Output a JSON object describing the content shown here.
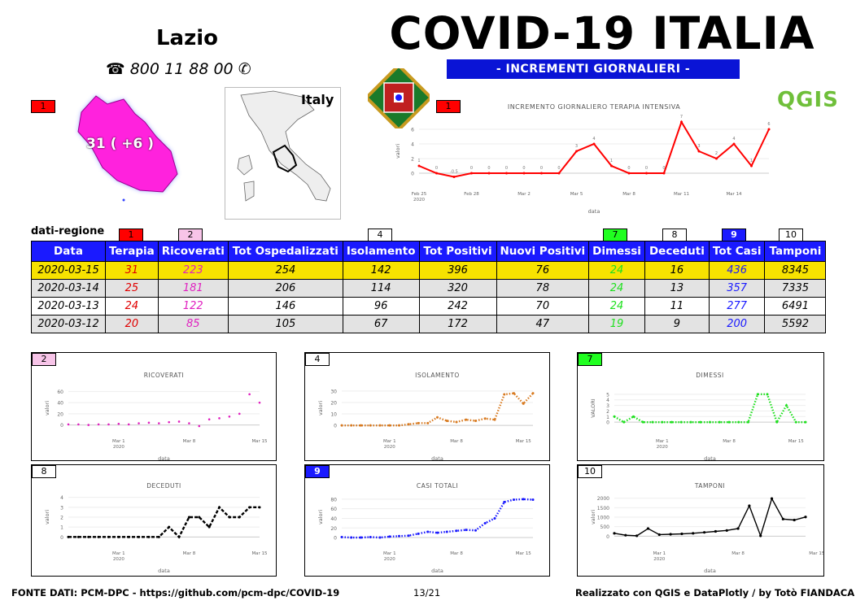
{
  "header": {
    "region": "Lazio",
    "phone_icon": "telephone-icon",
    "phone": "800 11 88 00",
    "title": "COVID-19 ITALIA",
    "subtitle": "- INCREMENTI GIORNALIERI -",
    "qgis_logo": "QGIS",
    "italy_label": "Italy",
    "map_label": "31 ( +6 )"
  },
  "badges": {
    "map": "1",
    "terapia_chart": "1",
    "tab_terapia": "1",
    "tab_ricoverati": "2",
    "tab_isolamento": "4",
    "tab_dimessi": "7",
    "tab_deceduti": "8",
    "tab_totcasi": "9",
    "tab_tamponi": "10"
  },
  "table": {
    "caption": "dati-regione",
    "headers": [
      "Data",
      "Terapia",
      "Ricoverati",
      "Tot Ospedalizzati",
      "Isolamento",
      "Tot Positivi",
      "Nuovi Positivi",
      "Dimessi",
      "Deceduti",
      "Tot Casi",
      "Tamponi"
    ],
    "rows": [
      [
        "2020-03-15",
        "31",
        "223",
        "254",
        "142",
        "396",
        "76",
        "24",
        "16",
        "436",
        "8345"
      ],
      [
        "2020-03-14",
        "25",
        "181",
        "206",
        "114",
        "320",
        "78",
        "24",
        "13",
        "357",
        "7335"
      ],
      [
        "2020-03-13",
        "24",
        "122",
        "146",
        "96",
        "242",
        "70",
        "24",
        "11",
        "277",
        "6491"
      ],
      [
        "2020-03-12",
        "20",
        "85",
        "105",
        "67",
        "172",
        "47",
        "19",
        "9",
        "200",
        "5592"
      ]
    ]
  },
  "footer": {
    "source": "FONTE DATI: PCM-DPC - https://github.com/pcm-dpc/COVID-19",
    "page": "13/21",
    "credits": "Realizzato con QGIS e DataPlotly / by Totò FIANDACA"
  },
  "chart_data": [
    {
      "id": "terapia",
      "type": "line",
      "badge": "1",
      "badge_color": "#ff0000",
      "title": "INCREMENTO GIORNALIERO TERAPIA INTENSIVA",
      "xlabel": "data",
      "ylabel": "valori",
      "color": "#ff0000",
      "style": "solid",
      "ylim": [
        -1,
        7
      ],
      "yticks": [
        0,
        2,
        4,
        6
      ],
      "x_tick_labels": [
        [
          "Feb 25",
          "2020"
        ],
        [
          "Feb 28",
          ""
        ],
        [
          "Mar 2",
          ""
        ],
        [
          "Mar 5",
          ""
        ],
        [
          "Mar 8",
          ""
        ],
        [
          "Mar 11",
          ""
        ],
        [
          "Mar 14",
          ""
        ]
      ],
      "x_tick_index": [
        0,
        3,
        6,
        9,
        12,
        15,
        18
      ],
      "values": [
        1,
        0,
        -0.5,
        0,
        0,
        0,
        0,
        0,
        0,
        3,
        4,
        1,
        0,
        0,
        0,
        7,
        3,
        2,
        4,
        1,
        6
      ],
      "point_labels": true
    },
    {
      "id": "ricoverati",
      "type": "scatter",
      "badge": "2",
      "badge_color": "#f7c4e8",
      "title": "RICOVERATI",
      "xlabel": "data",
      "ylabel": "valori",
      "color": "#e020c0",
      "style": "points",
      "ylim": [
        -5,
        65
      ],
      "yticks": [
        0,
        20,
        40,
        60
      ],
      "x_tick_labels": [
        [
          "Mar 1",
          "2020"
        ],
        [
          "Mar 8",
          ""
        ],
        [
          "Mar 15",
          ""
        ]
      ],
      "x_tick_index": [
        5,
        12,
        19
      ],
      "values": [
        1,
        1,
        0,
        1,
        1,
        2,
        1,
        3,
        4,
        3,
        5,
        6,
        3,
        -2,
        10,
        12,
        15,
        20,
        55,
        40
      ]
    },
    {
      "id": "isolamento",
      "type": "line",
      "badge": "4",
      "badge_color": "#ffffff",
      "title": "ISOLAMENTO",
      "xlabel": "data",
      "ylabel": "valori",
      "color": "#d87a20",
      "style": "dotted",
      "ylim": [
        -2,
        32
      ],
      "yticks": [
        0,
        10,
        20,
        30
      ],
      "x_tick_labels": [
        [
          "Mar 1",
          "2020"
        ],
        [
          "Mar 8",
          ""
        ],
        [
          "Mar 15",
          ""
        ]
      ],
      "x_tick_index": [
        5,
        12,
        19
      ],
      "values": [
        0,
        0,
        0,
        0,
        0,
        0,
        0,
        1,
        2,
        2,
        7,
        4,
        3,
        5,
        4,
        6,
        5,
        27,
        28,
        19,
        28
      ]
    },
    {
      "id": "dimessi",
      "type": "line",
      "badge": "7",
      "badge_color": "#20ff20",
      "title": "DIMESSI",
      "xlabel": "data",
      "ylabel": "VALORI",
      "color": "#20e020",
      "style": "dotted",
      "ylim": [
        -1,
        6
      ],
      "yticks": [
        0,
        1,
        2,
        3,
        4,
        5
      ],
      "x_tick_labels": [
        [
          "Mar 1",
          "2020"
        ],
        [
          "Mar 8",
          ""
        ],
        [
          "Mar 15",
          ""
        ]
      ],
      "x_tick_index": [
        5,
        12,
        19
      ],
      "values": [
        1,
        0,
        1,
        0,
        0,
        0,
        0,
        0,
        0,
        0,
        0,
        0,
        0,
        0,
        0,
        5,
        5,
        0,
        3,
        0,
        0
      ]
    },
    {
      "id": "deceduti",
      "type": "line",
      "badge": "8",
      "badge_color": "#ffffff",
      "title": "DECEDUTI",
      "xlabel": "data",
      "ylabel": "valori",
      "color": "#000000",
      "style": "dashed",
      "ylim": [
        -0.3,
        4.3
      ],
      "yticks": [
        0,
        1,
        2,
        3,
        4
      ],
      "x_tick_labels": [
        [
          "Mar 1",
          "2020"
        ],
        [
          "Mar 8",
          ""
        ],
        [
          "Mar 15",
          ""
        ]
      ],
      "x_tick_index": [
        5,
        12,
        19
      ],
      "values": [
        0,
        0,
        0,
        0,
        0,
        0,
        0,
        0,
        0,
        0,
        1,
        0,
        2,
        2,
        1,
        3,
        2,
        2,
        3,
        3
      ]
    },
    {
      "id": "casi_totali",
      "type": "line",
      "badge": "9",
      "badge_color": "#1a1aff",
      "title": "CASI TOTALI",
      "xlabel": "data",
      "ylabel": "valori",
      "color": "#1a1aff",
      "style": "dotted",
      "ylim": [
        -5,
        90
      ],
      "yticks": [
        0,
        20,
        40,
        60,
        80
      ],
      "x_tick_labels": [
        [
          "Mar 1",
          "2020"
        ],
        [
          "Mar 8",
          ""
        ],
        [
          "Mar 15",
          ""
        ]
      ],
      "x_tick_index": [
        5,
        12,
        19
      ],
      "values": [
        1,
        0,
        0,
        1,
        0,
        2,
        3,
        4,
        8,
        12,
        10,
        12,
        14,
        16,
        15,
        30,
        40,
        74,
        79,
        80,
        79
      ]
    },
    {
      "id": "tamponi",
      "type": "line",
      "badge": "10",
      "badge_color": "#ffffff",
      "title": "TAMPONI",
      "xlabel": "data",
      "ylabel": "valori",
      "color": "#000000",
      "style": "solid-markers",
      "ylim": [
        -200,
        2200
      ],
      "yticks": [
        0,
        500,
        1000,
        1500,
        2000
      ],
      "x_tick_labels": [
        [
          "Mar 1",
          "2020"
        ],
        [
          "Mar 8",
          ""
        ],
        [
          "Mar 15",
          ""
        ]
      ],
      "x_tick_index": [
        4,
        11,
        18
      ],
      "values": [
        150,
        50,
        20,
        400,
        80,
        100,
        120,
        150,
        200,
        250,
        300,
        400,
        1600,
        20,
        1980,
        900,
        850,
        1010
      ]
    }
  ]
}
